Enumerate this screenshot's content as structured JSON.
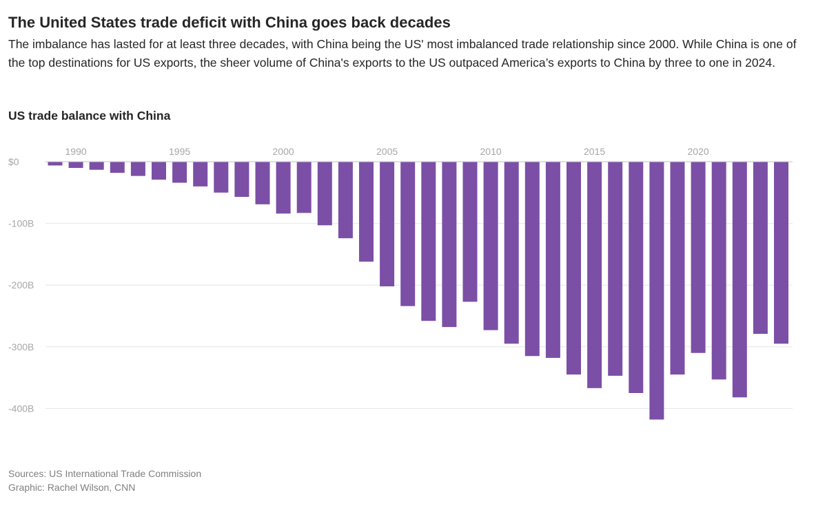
{
  "header": {
    "title": "The United States trade deficit with China goes back decades",
    "subtitle": "The imbalance has lasted for at least three decades, with China being the US' most imbalanced trade relationship since 2000. While China is one of the top destinations for US exports, the sheer volume of China's exports to the US outpaced America’s exports to China by three to one in 2024."
  },
  "footer": {
    "sources": "Sources: US International Trade Commission",
    "graphic": "Graphic: Rachel Wilson, CNN"
  },
  "colors": {
    "bar": "#7b4fa6",
    "grid": "#e6e6e6",
    "axis": "#a6a6a6",
    "zero": "#bfbfbf"
  },
  "chart_data": {
    "type": "bar",
    "title": "US trade balance with China",
    "xlabel": "",
    "ylabel": "",
    "ylim": [
      -420,
      0
    ],
    "yticks": [
      0,
      -100,
      -200,
      -300,
      -400
    ],
    "ytick_labels": [
      "$0",
      "-100B",
      "-200B",
      "-300B",
      "-400B"
    ],
    "xtick_years": [
      1990,
      1995,
      2000,
      2005,
      2010,
      2015,
      2020
    ],
    "categories": [
      1989,
      1990,
      1991,
      1992,
      1993,
      1994,
      1995,
      1996,
      1997,
      1998,
      1999,
      2000,
      2001,
      2002,
      2003,
      2004,
      2005,
      2006,
      2007,
      2008,
      2009,
      2010,
      2011,
      2012,
      2013,
      2014,
      2015,
      2016,
      2017,
      2018,
      2019,
      2020,
      2021,
      2022,
      2023,
      2024
    ],
    "values": [
      -6,
      -10,
      -13,
      -18,
      -23,
      -29,
      -34,
      -40,
      -50,
      -57,
      -69,
      -84,
      -83,
      -103,
      -124,
      -162,
      -202,
      -234,
      -258,
      -268,
      -227,
      -273,
      -295,
      -315,
      -318,
      -345,
      -367,
      -347,
      -375,
      -418,
      -345,
      -310,
      -353,
      -382,
      -279,
      -295
    ]
  }
}
